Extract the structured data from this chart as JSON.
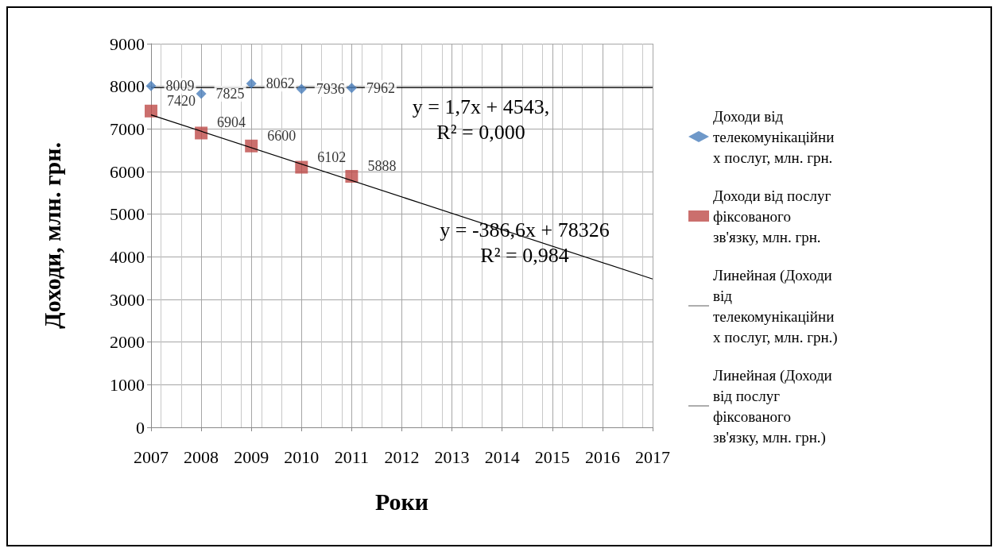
{
  "chart_data": {
    "type": "scatter",
    "xlabel": "Роки",
    "ylabel": "Доходи, млн. грн.",
    "xlim": [
      2007,
      2017
    ],
    "xticks": [
      2007,
      2008,
      2009,
      2010,
      2011,
      2012,
      2013,
      2014,
      2015,
      2016,
      2017
    ],
    "ylim": [
      0,
      9000
    ],
    "yticks": [
      0,
      1000,
      2000,
      3000,
      4000,
      5000,
      6000,
      7000,
      8000,
      9000
    ],
    "grid": true,
    "legend": "right",
    "series": [
      {
        "name": "Доходи від телекомунікаційних послуг, млн. грн.",
        "color": "#4a7ebb",
        "marker": "diamond",
        "x": [
          2007,
          2008,
          2009,
          2010,
          2011
        ],
        "values": [
          8009,
          7825,
          8062,
          7936,
          7962
        ],
        "value_labels": [
          "8009",
          "7825",
          "8062",
          "7936",
          "7962"
        ]
      },
      {
        "name": "Доходи від послуг фіксованого зв'язку, млн. грн.",
        "color": "#be4b48",
        "marker": "square",
        "x": [
          2007,
          2008,
          2009,
          2010,
          2011
        ],
        "values": [
          7420,
          6904,
          6600,
          6102,
          5888
        ],
        "value_labels": [
          "7420",
          "6904",
          "6600",
          "6102",
          "5888"
        ]
      },
      {
        "name": "Линейная (Доходи від телекомунікаційних послуг, млн. грн.)",
        "type": "line",
        "color": "#000000",
        "x": [
          2007,
          2017
        ],
        "values": [
          7970,
          7970
        ]
      },
      {
        "name": "Линейная (Доходи від послуг фіксованого зв'язку, млн. грн.)",
        "type": "line",
        "color": "#000000",
        "x": [
          2007,
          2017
        ],
        "values": [
          7330,
          3480
        ]
      }
    ],
    "annotations": [
      "y = 1,7x + 4543,\nR² = 0,000",
      "y = -386,6x + 78326\nR² = 0,984"
    ]
  }
}
